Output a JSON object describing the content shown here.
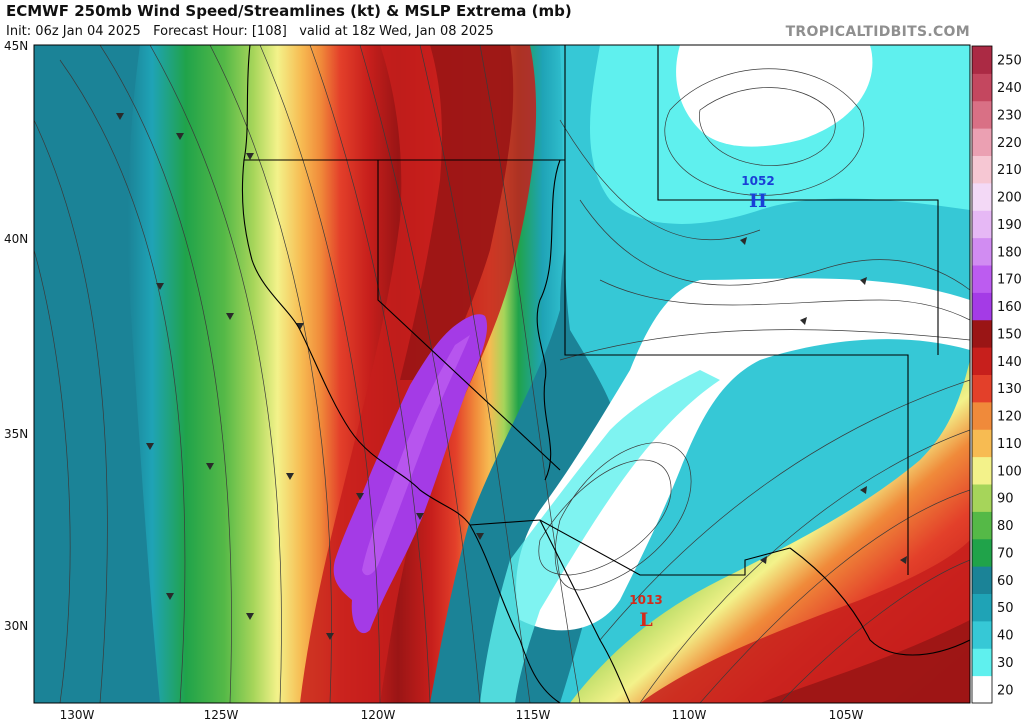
{
  "header": {
    "title": "ECMWF 250mb Wind Speed/Streamlines (kt) & MSLP Extrema (mb)",
    "subtitle": "Init: 06z Jan 04 2025   Forecast Hour: [108]   valid at 18z Wed, Jan 08 2025",
    "brand": "TROPICALTIDBITS.COM"
  },
  "axes": {
    "lat_labels": [
      "45N",
      "40N",
      "35N",
      "30N"
    ],
    "lon_labels": [
      "130W",
      "125W",
      "120W",
      "115W",
      "110W",
      "105W"
    ]
  },
  "colorbar": {
    "levels": [
      "20",
      "30",
      "40",
      "50",
      "60",
      "70",
      "80",
      "90",
      "100",
      "110",
      "120",
      "130",
      "140",
      "150",
      "160",
      "170",
      "180",
      "190",
      "200",
      "210",
      "220",
      "230",
      "240",
      "250"
    ],
    "labels": [
      "20",
      "30",
      "40",
      "50",
      "60",
      "70",
      "80",
      "90",
      "100",
      "110",
      "120",
      "130",
      "140",
      "150",
      "160",
      "170",
      "180",
      "190",
      "200",
      "210",
      "220",
      "230",
      "240",
      "250"
    ],
    "colors": [
      "#ffffff",
      "#5ff0ee",
      "#36c8d6",
      "#1fa3b6",
      "#1b8397",
      "#20a34a",
      "#55b947",
      "#a6d55a",
      "#f3f28a",
      "#f7bb52",
      "#f08a3a",
      "#e3402a",
      "#c71f1c",
      "#9a1515",
      "#a43be6",
      "#bc5cf0",
      "#d18cf2",
      "#e6b8f5",
      "#f3d9f6",
      "#f6c7d3",
      "#eba0b2",
      "#d97085",
      "#c4475f",
      "#ab2a44"
    ]
  },
  "extrema": [
    {
      "type": "H",
      "value": "1052",
      "color": "#1a3fd6"
    },
    {
      "type": "L",
      "value": "1013",
      "color": "#d42a1a"
    }
  ],
  "colors": {
    "background": "#ffffff",
    "border": "#000000",
    "streamline": "#3a3a3a"
  }
}
